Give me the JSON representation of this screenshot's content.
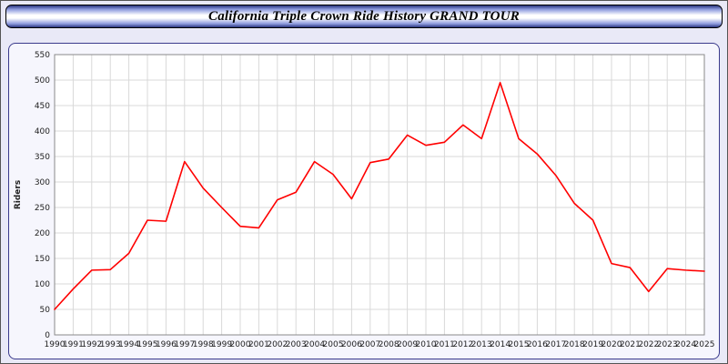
{
  "header": {
    "title": "California Triple Crown Ride History GRAND TOUR"
  },
  "colors": {
    "line": "#ff0000",
    "page_background": "#e9e9f7",
    "plot_background": "#ffffff",
    "grid": "#d9d9d9",
    "axis": "#8a8a8a",
    "tick_text": "#222222"
  },
  "chart_data": {
    "type": "line",
    "title": "California Triple Crown Ride History GRAND TOUR",
    "xlabel": "",
    "ylabel": "Riders",
    "ylim": [
      0,
      550
    ],
    "ytick_step": 50,
    "grid": true,
    "legend_position": "none",
    "x": [
      1990,
      1991,
      1992,
      1993,
      1994,
      1995,
      1996,
      1997,
      1998,
      1999,
      2000,
      2001,
      2002,
      2003,
      2004,
      2005,
      2006,
      2007,
      2008,
      2009,
      2010,
      2011,
      2012,
      2013,
      2014,
      2015,
      2016,
      2017,
      2018,
      2019,
      2020,
      2021,
      2022,
      2023,
      2024,
      2025
    ],
    "series": [
      {
        "name": "Riders",
        "color": "#ff0000",
        "values": [
          50,
          90,
          127,
          128,
          160,
          225,
          223,
          340,
          288,
          250,
          213,
          210,
          265,
          280,
          340,
          315,
          267,
          338,
          345,
          392,
          372,
          378,
          412,
          385,
          495,
          385,
          355,
          313,
          258,
          225,
          140,
          132,
          85,
          130,
          127,
          125
        ]
      }
    ]
  }
}
